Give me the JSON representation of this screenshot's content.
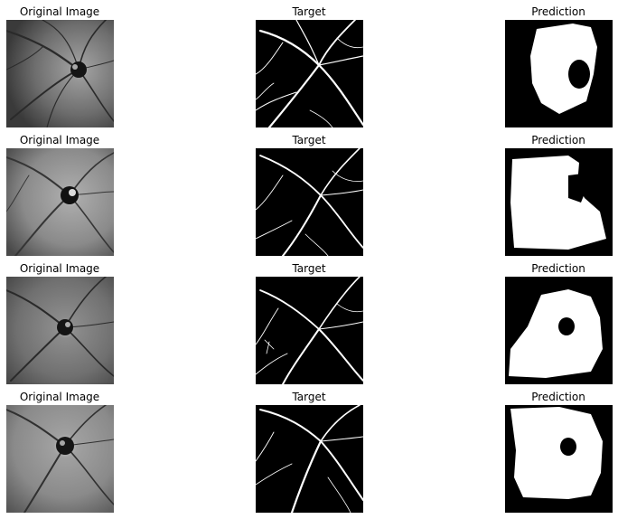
{
  "figure": {
    "rows": [
      {
        "titles": {
          "original": "Original Image",
          "target": "Target",
          "prediction": "Prediction"
        }
      },
      {
        "titles": {
          "original": "Original Image",
          "target": "Target",
          "prediction": "Prediction"
        }
      },
      {
        "titles": {
          "original": "Original Image",
          "target": "Target",
          "prediction": "Prediction"
        }
      },
      {
        "titles": {
          "original": "Original Image",
          "target": "Target",
          "prediction": "Prediction"
        }
      }
    ]
  }
}
